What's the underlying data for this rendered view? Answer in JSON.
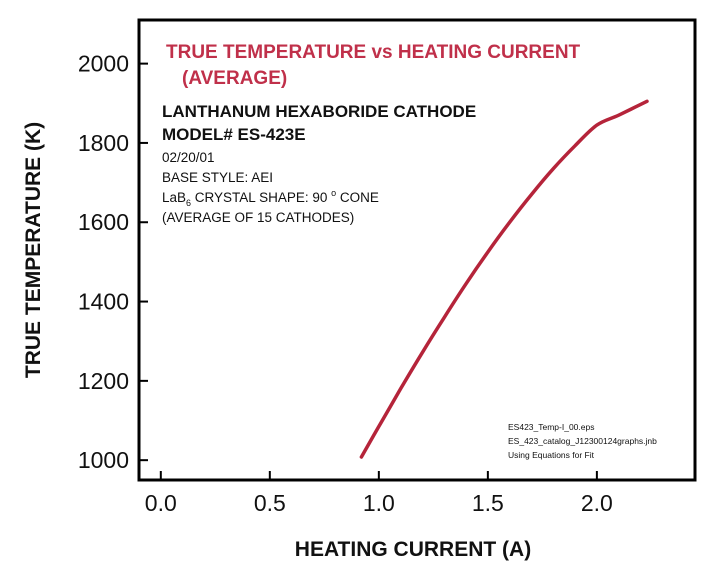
{
  "chart_data": {
    "type": "line",
    "title_line1": "TRUE TEMPERATURE vs HEATING CURRENT",
    "title_line2": "(AVERAGE)",
    "subtitle_line1": "LANTHANUM HEXABORIDE CATHODE",
    "subtitle_line2": "MODEL# ES-423E",
    "info": {
      "date": "02/20/01",
      "base_style": "BASE STYLE: AEI",
      "crystal_prefix": "LaB",
      "crystal_subscript": "6",
      "crystal_mid": " CRYSTAL SHAPE:  90 ",
      "crystal_degree": "o",
      "crystal_suffix": " CONE",
      "average": "(AVERAGE OF 15 CATHODES)"
    },
    "notes": [
      "ES423_Temp-I_00.eps",
      "ES_423_catalog_J12300124graphs.jnb",
      "Using Equations for Fit"
    ],
    "xlabel": "HEATING CURRENT (A)",
    "ylabel": "TRUE TEMPERATURE (K)",
    "xlim": [
      -0.1,
      2.45
    ],
    "ylim": [
      950,
      2110
    ],
    "xticks": [
      0.0,
      0.5,
      1.0,
      1.5,
      2.0
    ],
    "xtick_labels": [
      "0.0",
      "0.5",
      "1.0",
      "1.5",
      "2.0"
    ],
    "yticks": [
      1000,
      1200,
      1400,
      1600,
      1800,
      2000
    ],
    "ytick_labels": [
      "1000",
      "1200",
      "1400",
      "1600",
      "1800",
      "2000"
    ],
    "grid": false,
    "series": [
      {
        "color": "#b5243a",
        "x": [
          0.92,
          1.0,
          1.1,
          1.2,
          1.3,
          1.4,
          1.5,
          1.6,
          1.7,
          1.8,
          1.9,
          2.0,
          2.1,
          2.23
        ],
        "y": [
          1008,
          1085,
          1180,
          1272,
          1360,
          1445,
          1525,
          1600,
          1670,
          1735,
          1793,
          1845,
          1870,
          1905
        ]
      }
    ],
    "title_color": "#c0304a"
  }
}
